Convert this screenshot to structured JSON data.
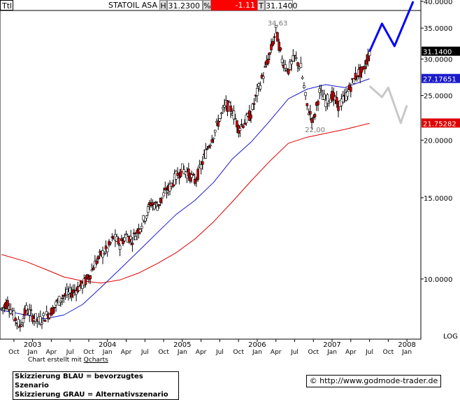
{
  "header": {
    "ticker": "Ttl",
    "name": "STATOIL ASA",
    "high_label": "H",
    "high_value": "31.2300",
    "pct_label": "%",
    "change_value": "-1.11",
    "last_label": "T",
    "last_value": "31.1400"
  },
  "footer": {
    "credit_prefix": "Chart erstellt mit",
    "credit_link": "Qcharts",
    "legend_line1": "Skizzierung BLAU = bevorzugtes Szenario",
    "legend_line2": "Skizzierung GRAU = Alternativszenario",
    "website": "© http://www.godmode-trader.de"
  },
  "colors": {
    "candle_up": "#ffffff",
    "candle_down": "#d40000",
    "candle_outline": "#000000",
    "ma_short": "#1a1acc",
    "ma_long": "#dd0000",
    "scenario_blue": "#0000ff",
    "scenario_gray": "#c8c8c8",
    "price_tag": "#000000",
    "ma_short_tag": "#1a1acc",
    "ma_long_tag": "#dd0000"
  },
  "chart_data": {
    "type": "candlestick",
    "scale": "log",
    "ylim": [
      7.8,
      40.0
    ],
    "y_ticks": [
      {
        "value": 10,
        "label": "10.0000"
      },
      {
        "value": 15,
        "label": "15.0000"
      },
      {
        "value": 20,
        "label": "20.0000"
      },
      {
        "value": 25,
        "label": "25.0000"
      },
      {
        "value": 30,
        "label": "30.0000"
      },
      {
        "value": 35,
        "label": "35.0000"
      },
      {
        "value": 40,
        "label": "40.0000"
      }
    ],
    "scale_label": "LOG",
    "x_months": [
      "Oct",
      "Jan",
      "Apr",
      "Jul",
      "Oct",
      "Jan",
      "Apr",
      "Jul",
      "Oct",
      "Jan",
      "Apr",
      "Jul",
      "Oct",
      "Jan",
      "Apr",
      "Jul",
      "Oct",
      "Jan",
      "Apr",
      "Jul",
      "Oct",
      "Jan"
    ],
    "x_years": [
      "2003",
      "2004",
      "2005",
      "2006",
      "2007",
      "2008"
    ],
    "x_range": [
      "2002-08",
      "2008-03"
    ],
    "price_path": [
      [
        "2002-08",
        8.6
      ],
      [
        "2002-09",
        8.9
      ],
      [
        "2002-10",
        8.3
      ],
      [
        "2002-11",
        7.9
      ],
      [
        "2002-12",
        8.6
      ],
      [
        "2003-01",
        8.3
      ],
      [
        "2003-02",
        8.1
      ],
      [
        "2003-03",
        8.3
      ],
      [
        "2003-04",
        8.5
      ],
      [
        "2003-05",
        8.9
      ],
      [
        "2003-06",
        9.2
      ],
      [
        "2003-07",
        9.3
      ],
      [
        "2003-08",
        9.5
      ],
      [
        "2003-09",
        9.7
      ],
      [
        "2003-10",
        10.1
      ],
      [
        "2003-11",
        10.8
      ],
      [
        "2003-12",
        11.3
      ],
      [
        "2004-01",
        11.6
      ],
      [
        "2004-02",
        12.3
      ],
      [
        "2004-03",
        11.9
      ],
      [
        "2004-04",
        12.4
      ],
      [
        "2004-05",
        12.2
      ],
      [
        "2004-06",
        12.8
      ],
      [
        "2004-07",
        13.6
      ],
      [
        "2004-08",
        14.6
      ],
      [
        "2004-09",
        14.4
      ],
      [
        "2004-10",
        15.2
      ],
      [
        "2004-11",
        15.8
      ],
      [
        "2004-12",
        16.7
      ],
      [
        "2005-01",
        17.3
      ],
      [
        "2005-02",
        16.9
      ],
      [
        "2005-03",
        16.3
      ],
      [
        "2005-04",
        17.5
      ],
      [
        "2005-05",
        19.2
      ],
      [
        "2005-06",
        20.6
      ],
      [
        "2005-07",
        22.3
      ],
      [
        "2005-08",
        23.9
      ],
      [
        "2005-09",
        23.2
      ],
      [
        "2005-10",
        21.3
      ],
      [
        "2005-11",
        21.9
      ],
      [
        "2005-12",
        22.8
      ],
      [
        "2006-01",
        25.3
      ],
      [
        "2006-02",
        27.8
      ],
      [
        "2006-03",
        30.6
      ],
      [
        "2006-04",
        34.63
      ],
      [
        "2006-05",
        29.8
      ],
      [
        "2006-06",
        28.4
      ],
      [
        "2006-07",
        30.2
      ],
      [
        "2006-08",
        28.7
      ],
      [
        "2006-09",
        23.6
      ],
      [
        "2006-10",
        22.0
      ],
      [
        "2006-11",
        25.4
      ],
      [
        "2006-12",
        24.3
      ],
      [
        "2007-01",
        25.0
      ],
      [
        "2007-02",
        23.8
      ],
      [
        "2007-03",
        24.6
      ],
      [
        "2007-04",
        26.2
      ],
      [
        "2007-05",
        27.9
      ],
      [
        "2007-06",
        28.2
      ],
      [
        "2007-07",
        31.14
      ]
    ],
    "ma_short": [
      [
        "2002-08",
        8.55
      ],
      [
        "2002-12",
        8.35
      ],
      [
        "2003-03",
        8.2
      ],
      [
        "2003-06",
        8.35
      ],
      [
        "2003-09",
        8.8
      ],
      [
        "2003-12",
        9.6
      ],
      [
        "2004-03",
        10.5
      ],
      [
        "2004-06",
        11.5
      ],
      [
        "2004-09",
        12.6
      ],
      [
        "2004-12",
        13.8
      ],
      [
        "2005-03",
        14.8
      ],
      [
        "2005-06",
        16.2
      ],
      [
        "2005-09",
        18.2
      ],
      [
        "2005-12",
        19.8
      ],
      [
        "2006-03",
        22.0
      ],
      [
        "2006-06",
        24.6
      ],
      [
        "2006-09",
        25.8
      ],
      [
        "2006-12",
        26.4
      ],
      [
        "2007-03",
        26.0
      ],
      [
        "2007-07",
        27.18
      ]
    ],
    "ma_long": [
      [
        "2002-08",
        11.3
      ],
      [
        "2002-12",
        10.9
      ],
      [
        "2003-03",
        10.5
      ],
      [
        "2003-06",
        10.1
      ],
      [
        "2003-09",
        9.9
      ],
      [
        "2003-12",
        9.8
      ],
      [
        "2004-03",
        9.95
      ],
      [
        "2004-06",
        10.3
      ],
      [
        "2004-09",
        10.8
      ],
      [
        "2004-12",
        11.4
      ],
      [
        "2005-03",
        12.2
      ],
      [
        "2005-06",
        13.3
      ],
      [
        "2005-09",
        14.7
      ],
      [
        "2005-12",
        16.3
      ],
      [
        "2006-03",
        18.0
      ],
      [
        "2006-06",
        19.7
      ],
      [
        "2006-09",
        20.3
      ],
      [
        "2006-12",
        20.7
      ],
      [
        "2007-03",
        21.1
      ],
      [
        "2007-07",
        21.75
      ]
    ],
    "annotations": [
      {
        "text": "34,63",
        "x": "2006-04",
        "y": 34.63
      },
      {
        "text": "22,00",
        "x": "2006-10",
        "y": 22.0
      }
    ],
    "scenario_blue": [
      [
        "2007-07",
        31.14
      ],
      [
        "2007-09",
        35.8
      ],
      [
        "2007-11",
        32.0
      ],
      [
        "2008-02",
        40.0
      ]
    ],
    "scenario_gray": [
      [
        "2007-07",
        26.2
      ],
      [
        "2007-09",
        24.8
      ],
      [
        "2007-10",
        26.0
      ],
      [
        "2007-12",
        21.8
      ],
      [
        "2008-01",
        23.8
      ]
    ],
    "price_tags": [
      {
        "label": "31.1400",
        "value": 31.14,
        "kind": "price"
      },
      {
        "label": "27.17651",
        "value": 27.17651,
        "kind": "ma_short"
      },
      {
        "label": "21.75282",
        "value": 21.75282,
        "kind": "ma_long"
      }
    ]
  }
}
